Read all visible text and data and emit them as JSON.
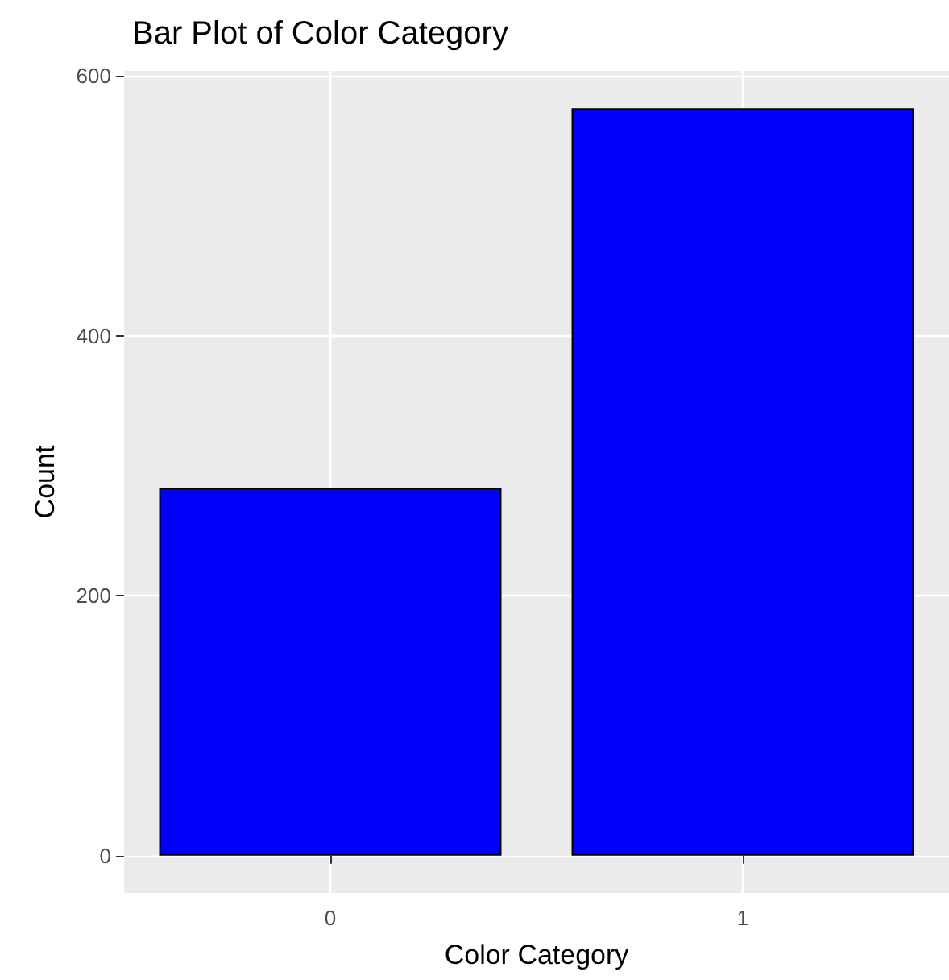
{
  "chart_data": {
    "type": "bar",
    "title": "Bar Plot of Color Category",
    "xlabel": "Color Category",
    "ylabel": "Count",
    "categories": [
      "0",
      "1"
    ],
    "values": [
      283,
      575
    ],
    "color": "#0000ff",
    "ylim": [
      -28.75,
      603.75
    ],
    "yticks": [
      0,
      200,
      400,
      600
    ],
    "grid": true
  }
}
